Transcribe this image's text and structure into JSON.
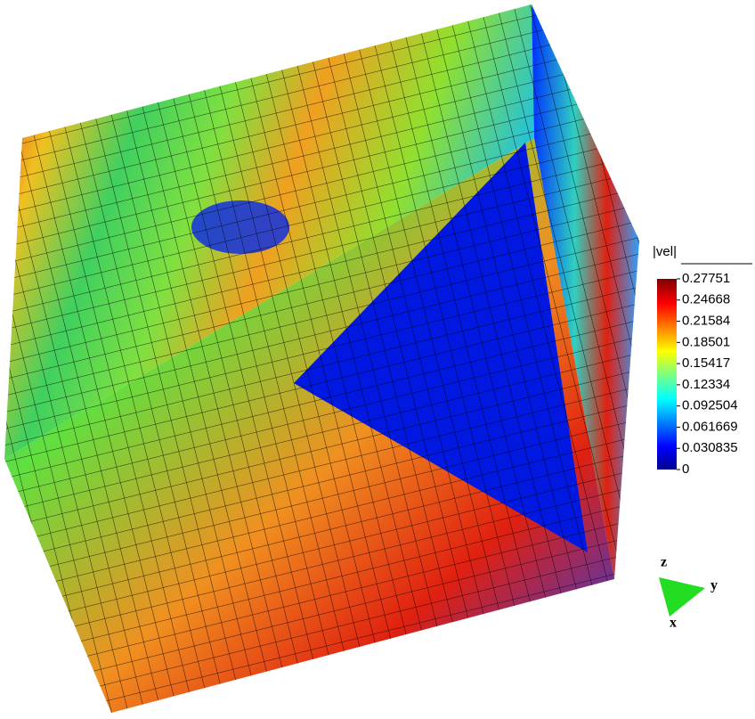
{
  "colorbar": {
    "label": "|vel|",
    "lim": [
      0,
      0.27751
    ],
    "ticks": [
      0.27751,
      0.24668,
      0.21584,
      0.18501,
      0.15417,
      0.12334,
      0.092504,
      0.061669,
      0.030835,
      0
    ]
  },
  "axes": {
    "z": "z",
    "y": "y",
    "x": "x"
  }
}
